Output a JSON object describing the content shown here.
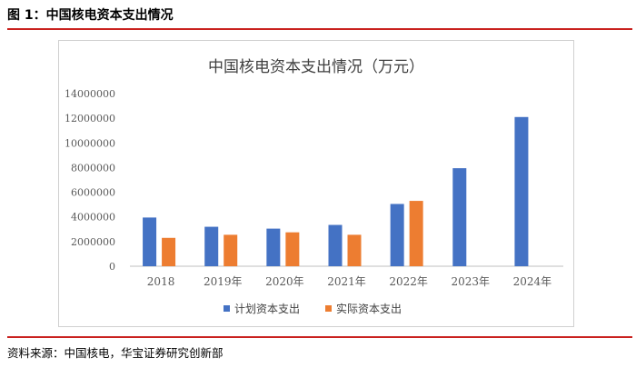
{
  "header": {
    "title": "图 1：中国核电资本支出情况"
  },
  "source": {
    "text": "资料来源：中国核电，华宝证券研究创新部"
  },
  "colors": {
    "accent_rule": "#c9211e",
    "planned": "#4472c4",
    "actual": "#ed7d31"
  },
  "chart_data": {
    "type": "bar",
    "title": "中国核电资本支出情况（万元）",
    "categories": [
      "2018",
      "2019年",
      "2020年",
      "2021年",
      "2022年",
      "2023年",
      "2024年"
    ],
    "series": [
      {
        "name": "计划资本支出",
        "color": "#4472c4",
        "values": [
          3950000,
          3200000,
          3050000,
          3350000,
          5050000,
          7950000,
          12100000
        ]
      },
      {
        "name": "实际资本支出",
        "color": "#ed7d31",
        "values": [
          2300000,
          2550000,
          2750000,
          2550000,
          5300000,
          null,
          null
        ]
      }
    ],
    "yticks": [
      "0",
      "2000000",
      "4000000",
      "6000000",
      "8000000",
      "10000000",
      "12000000",
      "14000000"
    ],
    "ylim": [
      0,
      14000000
    ],
    "grid": false,
    "legend_position": "bottom"
  }
}
